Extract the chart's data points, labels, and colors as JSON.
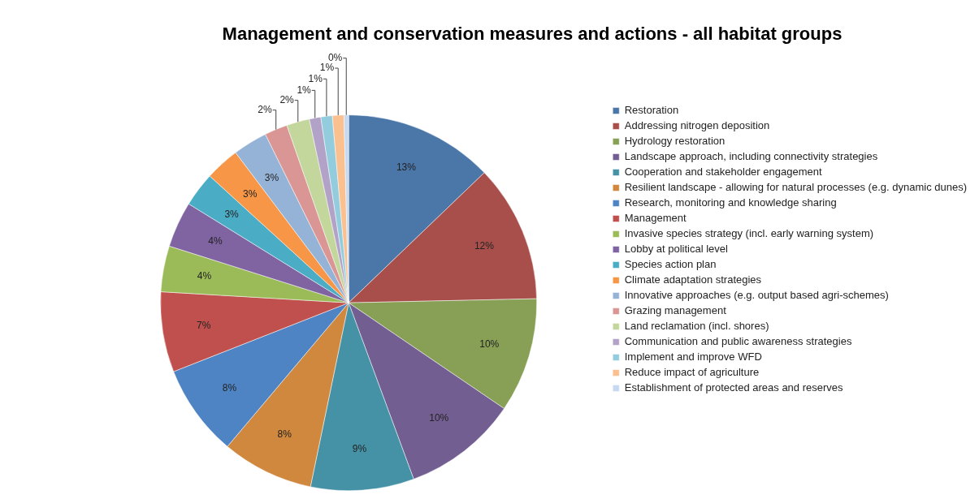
{
  "chart_data": {
    "type": "pie",
    "title": "Management and conservation measures and actions - all habitat groups",
    "categories": [
      "Restoration",
      "Addressing nitrogen deposition",
      "Hydrology restoration",
      "Landscape approach, including connectivity strategies",
      "Cooperation and stakeholder engagement",
      "Resilient landscape - allowing for natural processes (e.g. dynamic dunes)",
      "Research, monitoring and knowledge sharing",
      "Management",
      "Invasive species strategy (incl. early warning system)",
      "Lobby at political level",
      "Species action plan",
      "Climate adaptation strategies",
      "Innovative approaches (e.g. output based agri-schemes)",
      "Grazing management",
      "Land reclamation (incl. shores)",
      "Communication and public awareness strategies",
      "Implement and improve WFD",
      "Reduce impact of agriculture",
      "Establishment of protected areas and reserves"
    ],
    "values": [
      13,
      12,
      10,
      10,
      9,
      8,
      8,
      7,
      4,
      4,
      3,
      3,
      3,
      2,
      2,
      1,
      1,
      1,
      0.4
    ],
    "value_labels": [
      "13%",
      "12%",
      "10%",
      "10%",
      "9%",
      "8%",
      "8%",
      "7%",
      "4%",
      "4%",
      "3%",
      "3%",
      "3%",
      "2%",
      "2%",
      "1%",
      "1%",
      "1%",
      "0%"
    ],
    "colors": [
      "#4a76a8",
      "#a84f4b",
      "#87a055",
      "#735e92",
      "#4592a7",
      "#d0883f",
      "#4f84c4",
      "#c0504d",
      "#9bbb59",
      "#8064a2",
      "#4bacc6",
      "#f79646",
      "#95b3d7",
      "#d99694",
      "#c3d69b",
      "#b3a2c7",
      "#93cddd",
      "#fac090",
      "#c6d9f1"
    ],
    "legend": "right"
  }
}
